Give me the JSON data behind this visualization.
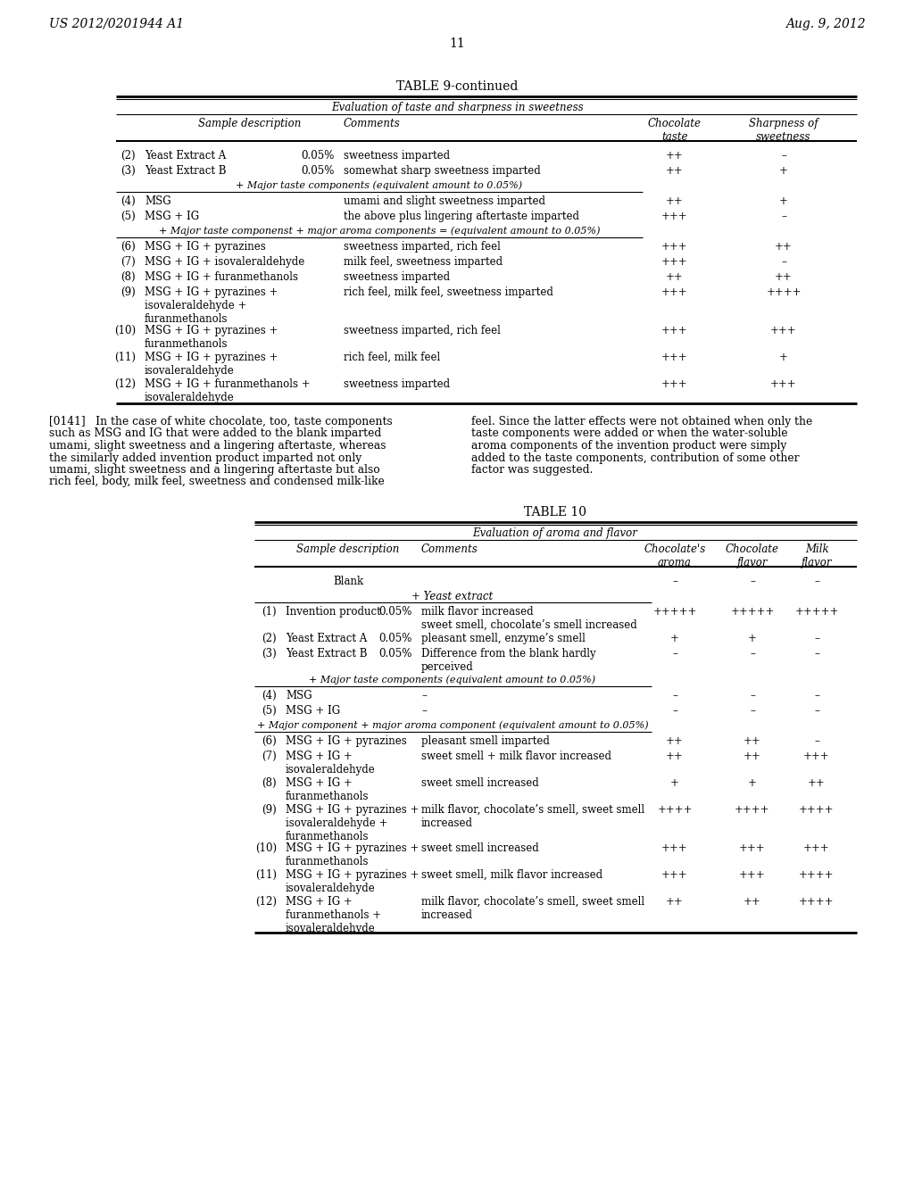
{
  "page_header_left": "US 2012/0201944 A1",
  "page_header_right": "Aug. 9, 2012",
  "page_number": "11",
  "table9_title": "TABLE 9-continued",
  "table9_subtitle": "Evaluation of taste and sharpness in sweetness",
  "table9_rows": [
    {
      "num": "(2)",
      "desc": "Yeast Extract A",
      "pct": "0.05%",
      "comment": "sweetness imparted",
      "choc": "++",
      "sharp": "–"
    },
    {
      "num": "(3)",
      "desc": "Yeast Extract B",
      "pct": "0.05%",
      "comment": "somewhat sharp sweetness imparted",
      "choc": "++",
      "sharp": "+"
    },
    {
      "num": "sep1",
      "desc": "+ Major taste components (equivalent amount to 0.05%)",
      "pct": "",
      "comment": "",
      "choc": "",
      "sharp": ""
    },
    {
      "num": "(4)",
      "desc": "MSG",
      "pct": "",
      "comment": "umami and slight sweetness imparted",
      "choc": "++",
      "sharp": "+"
    },
    {
      "num": "(5)",
      "desc": "MSG + IG",
      "pct": "",
      "comment": "the above plus lingering aftertaste imparted",
      "choc": "+++",
      "sharp": "–"
    },
    {
      "num": "sep2",
      "desc": "+ Major taste componenst + major aroma components = (equivalent amount to 0.05%)",
      "pct": "",
      "comment": "",
      "choc": "",
      "sharp": ""
    },
    {
      "num": "(6)",
      "desc": "MSG + IG + pyrazines",
      "pct": "",
      "comment": "sweetness imparted, rich feel",
      "choc": "+++",
      "sharp": "++"
    },
    {
      "num": "(7)",
      "desc": "MSG + IG + isovaleraldehyde",
      "pct": "",
      "comment": "milk feel, sweetness imparted",
      "choc": "+++",
      "sharp": "–"
    },
    {
      "num": "(8)",
      "desc": "MSG + IG + furanmethanols",
      "pct": "",
      "comment": "sweetness imparted",
      "choc": "++",
      "sharp": "++"
    },
    {
      "num": "(9)",
      "desc": "MSG + IG + pyrazines +\nisovaleraldehyde +\nfuranmethanols",
      "pct": "",
      "comment": "rich feel, milk feel, sweetness imparted",
      "choc": "+++",
      "sharp": "++++"
    },
    {
      "num": "(10)",
      "desc": "MSG + IG + pyrazines +\nfuranmethanols",
      "pct": "",
      "comment": "sweetness imparted, rich feel",
      "choc": "+++",
      "sharp": "+++"
    },
    {
      "num": "(11)",
      "desc": "MSG + IG + pyrazines +\nisovaleraldehyde",
      "pct": "",
      "comment": "rich feel, milk feel",
      "choc": "+++",
      "sharp": "+"
    },
    {
      "num": "(12)",
      "desc": "MSG + IG + furanmethanols +\nisovaleraldehyde",
      "pct": "",
      "comment": "sweetness imparted",
      "choc": "+++",
      "sharp": "+++"
    }
  ],
  "para141_left_lines": [
    "[0141]   In the case of white chocolate, too, taste components",
    "such as MSG and IG that were added to the blank imparted",
    "umami, slight sweetness and a lingering aftertaste, whereas",
    "the similarly added invention product imparted not only",
    "umami, slight sweetness and a lingering aftertaste but also",
    "rich feel, body, milk feel, sweetness and condensed milk-like"
  ],
  "para141_right_lines": [
    "feel. Since the latter effects were not obtained when only the",
    "taste components were added or when the water-soluble",
    "aroma components of the invention product were simply",
    "added to the taste components, contribution of some other",
    "factor was suggested."
  ],
  "table10_title": "TABLE 10",
  "table10_subtitle": "Evaluation of aroma and flavor",
  "table10_rows": [
    {
      "num": "blank",
      "desc": "Blank",
      "pct": "",
      "comment": "",
      "choc_a": "–",
      "choc_f": "–",
      "milk": "–"
    },
    {
      "num": "yeast_label",
      "desc": "",
      "pct": "",
      "comment": "+ Yeast extract",
      "choc_a": "",
      "choc_f": "",
      "milk": ""
    },
    {
      "num": "(1)",
      "desc": "Invention product",
      "pct": "0.05%",
      "comment": "milk flavor increased\nsweet smell, chocolate’s smell increased",
      "choc_a": "+++++",
      "choc_f": "+++++",
      "milk": "+++++"
    },
    {
      "num": "(2)",
      "desc": "Yeast Extract A",
      "pct": "0.05%",
      "comment": "pleasant smell, enzyme’s smell",
      "choc_a": "+",
      "choc_f": "+",
      "milk": "–"
    },
    {
      "num": "(3)",
      "desc": "Yeast Extract B",
      "pct": "0.05%",
      "comment": "Difference from the blank hardly\nperceived",
      "choc_a": "–",
      "choc_f": "–",
      "milk": "–"
    },
    {
      "num": "sep1",
      "desc": "+ Major taste components (equivalent amount to 0.05%)",
      "pct": "",
      "comment": "",
      "choc_a": "",
      "choc_f": "",
      "milk": ""
    },
    {
      "num": "(4)",
      "desc": "MSG",
      "pct": "",
      "comment": "–",
      "choc_a": "–",
      "choc_f": "–",
      "milk": "–"
    },
    {
      "num": "(5)",
      "desc": "MSG + IG",
      "pct": "",
      "comment": "–",
      "choc_a": "–",
      "choc_f": "–",
      "milk": "–"
    },
    {
      "num": "sep2",
      "desc": "+ Major component + major aroma component (equivalent amount to 0.05%)",
      "pct": "",
      "comment": "",
      "choc_a": "",
      "choc_f": "",
      "milk": ""
    },
    {
      "num": "(6)",
      "desc": "MSG + IG + pyrazines",
      "pct": "",
      "comment": "pleasant smell imparted",
      "choc_a": "++",
      "choc_f": "++",
      "milk": "–"
    },
    {
      "num": "(7)",
      "desc": "MSG + IG +\nisovaleraldehyde",
      "pct": "",
      "comment": "sweet smell + milk flavor increased",
      "choc_a": "++",
      "choc_f": "++",
      "milk": "+++"
    },
    {
      "num": "(8)",
      "desc": "MSG + IG +\nfuranmethanols",
      "pct": "",
      "comment": "sweet smell increased",
      "choc_a": "+",
      "choc_f": "+",
      "milk": "++"
    },
    {
      "num": "(9)",
      "desc": "MSG + IG + pyrazines +\nisovaleraldehyde +\nfuranmethanols",
      "pct": "",
      "comment": "milk flavor, chocolate’s smell, sweet smell\nincreased",
      "choc_a": "++++",
      "choc_f": "++++",
      "milk": "++++"
    },
    {
      "num": "(10)",
      "desc": "MSG + IG + pyrazines +\nfuranmethanols",
      "pct": "",
      "comment": "sweet smell increased",
      "choc_a": "+++",
      "choc_f": "+++",
      "milk": "+++"
    },
    {
      "num": "(11)",
      "desc": "MSG + IG + pyrazines +\nisovaleraldehyde",
      "pct": "",
      "comment": "sweet smell, milk flavor increased",
      "choc_a": "+++",
      "choc_f": "+++",
      "milk": "++++"
    },
    {
      "num": "(12)",
      "desc": "MSG + IG +\nfuranmethanols +\nisovaleraldehyde",
      "pct": "",
      "comment": "milk flavor, chocolate’s smell, sweet smell\nincreased",
      "choc_a": "++",
      "choc_f": "++",
      "milk": "++++"
    }
  ],
  "bg_color": "#ffffff",
  "text_color": "#000000"
}
